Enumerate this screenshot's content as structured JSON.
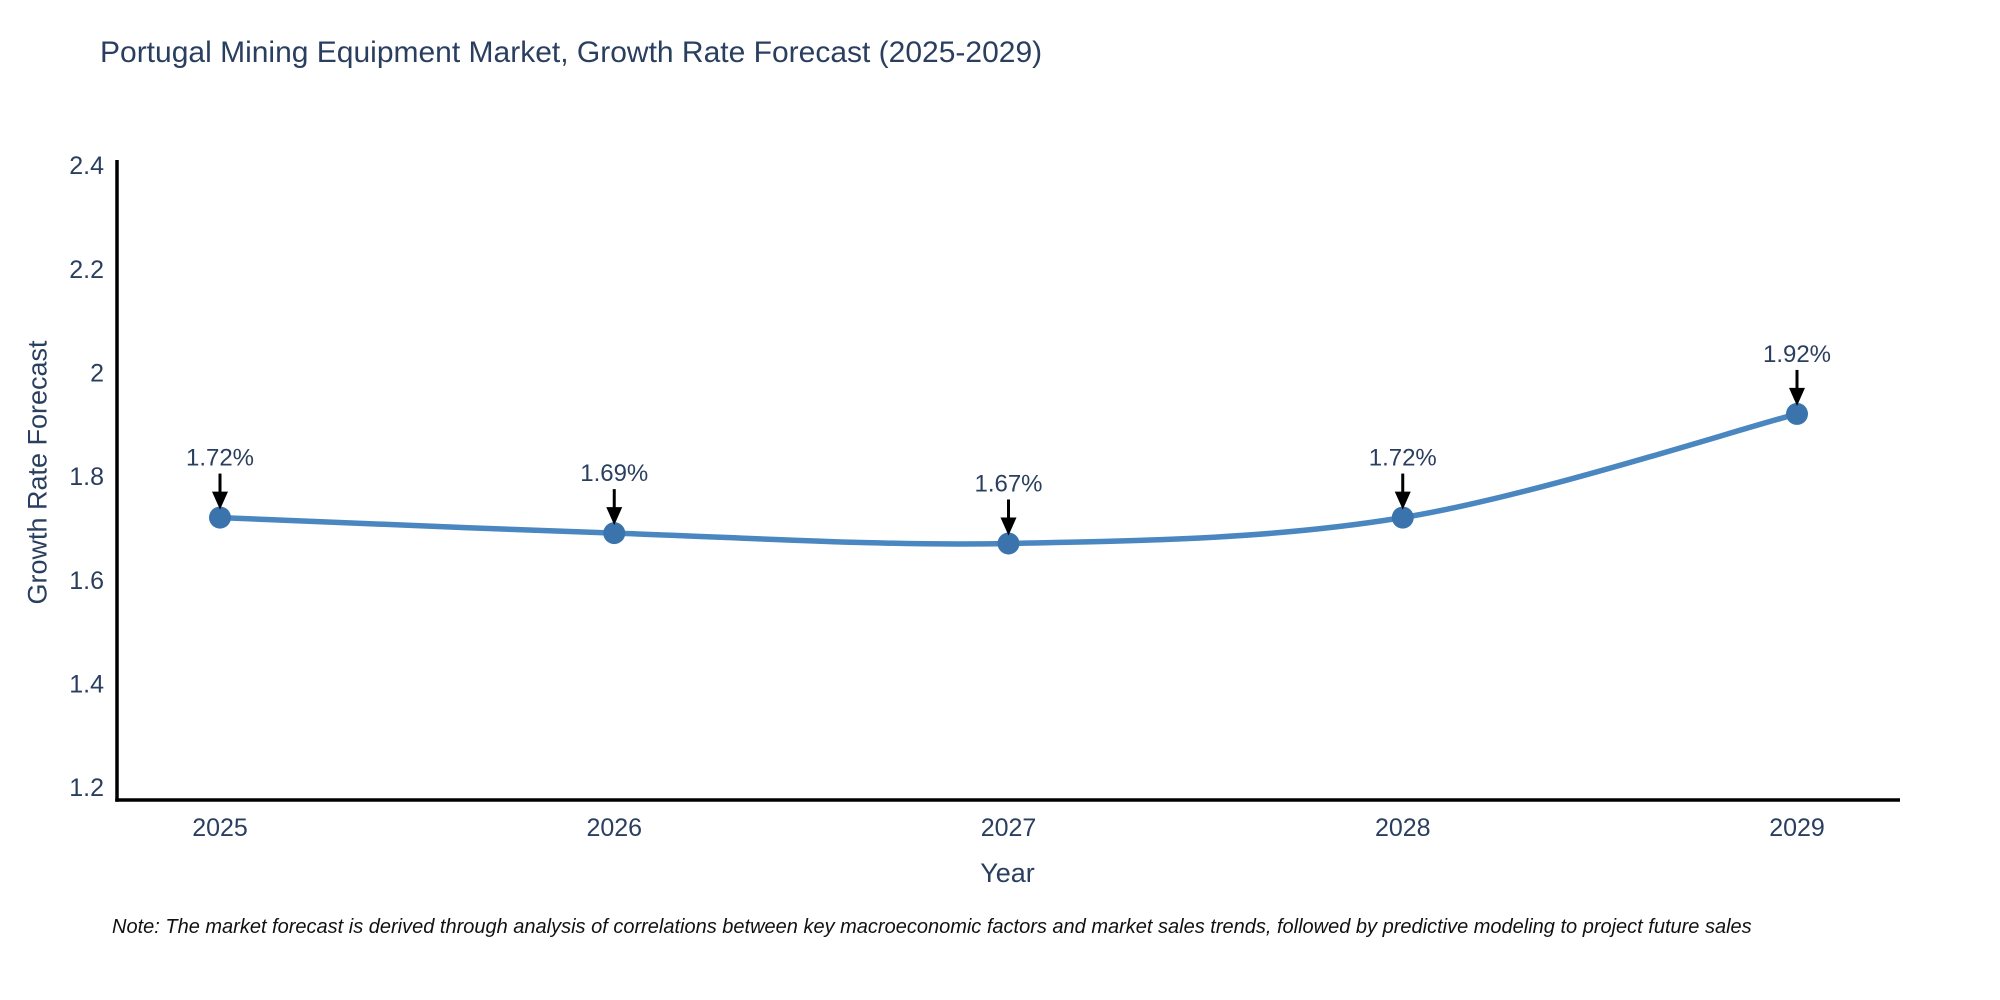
{
  "page": {
    "note": "Note: The market forecast is derived through analysis of correlations between key macroeconomic factors and market sales trends, followed by predictive modeling to project future sales"
  },
  "chart_data": {
    "type": "line",
    "title": "Portugal Mining Equipment Market, Growth Rate Forecast (2025-2029)",
    "xlabel": "Year",
    "ylabel": "Growth Rate Forecast",
    "categories": [
      "2025",
      "2026",
      "2027",
      "2028",
      "2029"
    ],
    "series": [
      {
        "name": "Growth Rate Forecast",
        "values": [
          1.72,
          1.69,
          1.67,
          1.72,
          1.92
        ]
      }
    ],
    "point_labels": [
      "1.72%",
      "1.69%",
      "1.67%",
      "1.72%",
      "1.92%"
    ],
    "ytick_labels": [
      "1.2",
      "1.4",
      "1.6",
      "1.8",
      "2",
      "2.2",
      "2.4"
    ],
    "yticks": [
      1.2,
      1.4,
      1.6,
      1.8,
      2.0,
      2.2,
      2.4
    ],
    "ylim": [
      1.175,
      2.41
    ],
    "grid": false,
    "legend": false,
    "colors": {
      "line": "#4a87c0",
      "marker": "#3b74ad",
      "axis": "#000000",
      "tick_text": "#2a3f5f",
      "annotation_text": "#2a3f5f",
      "annotation_arrow": "#000000"
    }
  }
}
